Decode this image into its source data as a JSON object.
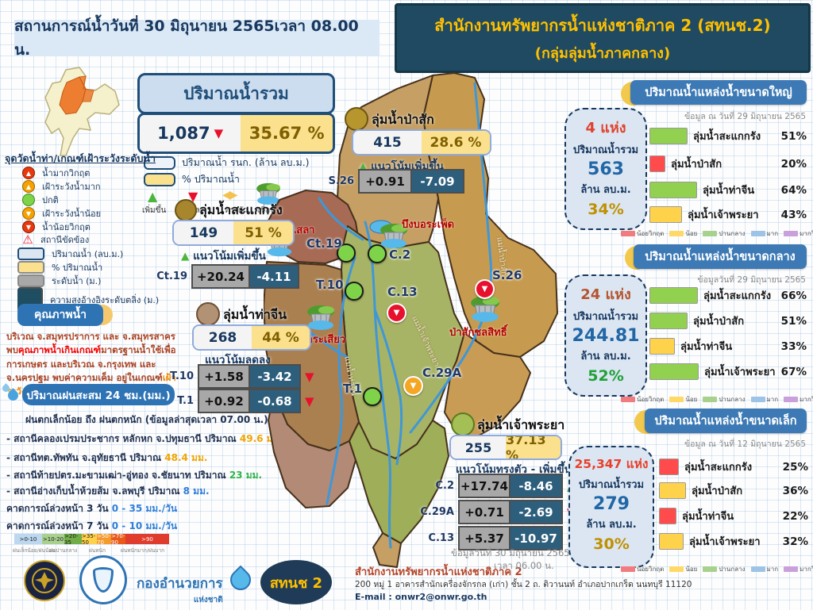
{
  "header": {
    "left_title": "สถานการณ์น้ำวันที่  30 มิถุนายน 2565เวลา 08.00 น.",
    "right_title_line1": "สำนักงานทรัพยากรน้ำแห่งชาติภาค 2 (สทนช.2)",
    "right_title_line2": "(กลุ่มลุ่มน้ำภาคกลาง)"
  },
  "total": {
    "title": "ปริมาณน้ำรวม",
    "value": "1,087",
    "pct": "35.67 %",
    "legend_volume": "ปริมาณน้ำ รนก. (ล้าน ลบ.ม.)",
    "legend_pct": "% ปริมาณน้ำ",
    "trend_up": "เพิ่มขึ้น",
    "trend_down": "ลดลง",
    "trend_stable": "ทรงตัว",
    "dam_label": "เขื่อน"
  },
  "station_legend": {
    "title": "จุดวัดน้ำท่า/เกณฑ์เฝ้าระวังระดับน้ำ",
    "items": [
      {
        "label": "น้ำมากวิกฤต"
      },
      {
        "label": "เฝ้าระวังน้ำมาก"
      },
      {
        "label": "ปกติ"
      },
      {
        "label": "เฝ้าระวังน้ำน้อย"
      },
      {
        "label": "น้ำน้อยวิกฤต"
      },
      {
        "label": "สถานีขัดข้อง"
      },
      {
        "label": "ปริมาณน้ำ (ลบ.ม.)"
      },
      {
        "label": "% ปริมาณน้ำ"
      },
      {
        "label": "ระดับน้ำ (ม.)"
      },
      {
        "label": "ความสูงอ้างอิงระดับตลิ่ง (ม.)"
      }
    ]
  },
  "water_quality": {
    "button": "คุณภาพน้ำ",
    "segments": [
      {
        "t": "บริเวณ จ.สมุทรปราการ และ จ.สมุทรสาคร พบ",
        "c": "#a94425"
      },
      {
        "t": "คุณภาพน้ำเกินเกณฑ์",
        "c": "#f40000"
      },
      {
        "t": "มาตรฐานน้ำใช้เพื่อการเกษตร และบริเวณ จ.กรุงเทพ และ จ.นครปฐม พบค่าความเค็ม อยู่ในเกณฑ์",
        "c": "#a94425"
      },
      {
        "t": "เฝ้าระวังคุณภาพน้ำ",
        "c": "#ef8a00"
      },
      {
        "t": "เพื่อการผลิตน้ำประปา",
        "c": "#a94425"
      }
    ]
  },
  "rain": {
    "button": "ปริมาณฝนสะสม 24 ชม.(มม.)",
    "headline": "ฝนตกเล็กน้อย ถึง ฝนตกหนัก (ข้อมูลล่าสุดเวลา 07.00 น.)",
    "items": [
      [
        {
          "t": "- สถานีคลองเปรมประชากร หลักหก จ.ปทุมธานี ปริมาณ ",
          "c": "#1f3050"
        },
        {
          "t": "49.6 มม.",
          "c": "#f0a500"
        }
      ],
      [
        {
          "t": "- สถานีทต.ทัพทัน จ.อุทัยธานี ปริมาณ ",
          "c": "#1f3050"
        },
        {
          "t": "48.4 มม.",
          "c": "#f0a500"
        }
      ],
      [
        {
          "t": "- สถานีท้ายปตร.มะขามเฒ่า-อู่ทอง จ.ชัยนาท ปริมาณ ",
          "c": "#1f3050"
        },
        {
          "t": "23 มม.",
          "c": "#2db34a"
        }
      ],
      [
        {
          "t": "- สถานีอ่างเก็บน้ำห้วยส้ม จ.ลพบุรี ปริมาณ ",
          "c": "#1f3050"
        },
        {
          "t": "8 มม.",
          "c": "#2f7ed8"
        }
      ]
    ],
    "forecast3": [
      {
        "t": "คาดการณ์ล่วงหน้า 3 วัน  ",
        "c": "#1f3050"
      },
      {
        "t": "0 - 35 มม./วัน",
        "c": "#2f7ed8"
      }
    ],
    "forecast7": [
      {
        "t": "คาดการณ์ล่วงหน้า 7 วัน  ",
        "c": "#1f3050"
      },
      {
        "t": "0 - 10 มม./วัน",
        "c": "#2f7ed8"
      }
    ],
    "scale": {
      "bins": [
        {
          "label": ">0-10",
          "color": "#bdd7ee"
        },
        {
          "label": ">10-20",
          "color": "#a9d08e"
        },
        {
          "label": ">20-35",
          "color": "#70ad47"
        },
        {
          "label": ">35-50",
          "color": "#ffd24c"
        },
        {
          "label": ">50-70",
          "color": "#f59b2d"
        },
        {
          "label": ">70-90",
          "color": "#e8591a"
        },
        {
          "label": ">90",
          "color": "#e03c2d"
        }
      ],
      "labels": [
        "ฝนเล็กน้อย/ฝนน้อย",
        "ฝนปานกลาง",
        "ฝนหนัก",
        "ฝนหนักมาก/ฝนมาก"
      ]
    }
  },
  "basins": {
    "pasak": {
      "name": "ลุ่มน้ำป่าสัก",
      "volume": "415",
      "pct": "28.6 %",
      "trend": "แนวโน้มเพิ่มขึ้น",
      "circle_color": "#b8962e",
      "rows": [
        {
          "station": "S.26",
          "level": "+0.91",
          "bank": "-7.09"
        }
      ]
    },
    "sakaekrang": {
      "name": "ลุ่มน้ำสะแกกรัง",
      "volume": "149",
      "pct": "51 %",
      "trend": "แนวโน้มเพิ่มขึ้น",
      "circle_color": "#a8862e",
      "rows": [
        {
          "station": "Ct.19",
          "level": "+20.24",
          "bank": "-4.11"
        }
      ]
    },
    "thachin": {
      "name": "ลุ่มน้ำท่าจีน",
      "volume": "268",
      "pct": "44 %",
      "trend": "แนวโน้มลดลง",
      "circle_color": "#b29275",
      "rows": [
        {
          "station": "T.10",
          "level": "+1.58",
          "bank": "-3.42"
        },
        {
          "station": "T.1",
          "level": "+0.92",
          "bank": "-0.68"
        }
      ]
    },
    "chaophraya": {
      "name": "ลุ่มน้ำเจ้าพระยา",
      "volume": "255",
      "pct": "37.13 %",
      "trend": "แนวโน้มทรงตัว - เพิ่มขึ้น",
      "circle_color": "#a4bf56",
      "rows": [
        {
          "station": "C.2",
          "level": "+17.74",
          "bank": "-8.46"
        },
        {
          "station": "C.29A",
          "level": "+0.71",
          "bank": "-2.69"
        },
        {
          "station": "C.13",
          "level": "+5.37",
          "bank": "-10.97"
        }
      ],
      "data_date": "ข้อมูลวันที่ 30 มิถุนายน 2565",
      "data_time": "เวลา 06.00 น."
    }
  },
  "map": {
    "stations": [
      {
        "code": "Ct.19",
        "status": "normal"
      },
      {
        "code": "C.2",
        "status": "normal"
      },
      {
        "code": "T.10",
        "status": "normal"
      },
      {
        "code": "T.1",
        "status": "normal"
      },
      {
        "code": "C.13",
        "status": "crit-low"
      },
      {
        "code": "S.26",
        "status": "crit-low"
      },
      {
        "code": "C.29A",
        "status": "watch-low"
      }
    ],
    "dams": [
      {
        "name": "ทับเสลา"
      },
      {
        "name": "บึงบอระเพ็ด"
      },
      {
        "name": "กระเสียว"
      },
      {
        "name": "ป่าสักชลสิทธิ์"
      }
    ],
    "rivers": [
      {
        "name": "แม่น้ำท่าจีน"
      },
      {
        "name": "แม่น้ำเจ้าพระยา"
      },
      {
        "name": "แม่น้ำป่าสัก"
      }
    ]
  },
  "reservoirs": {
    "large": {
      "title": "ปริมาณน้ำแหล่งน้ำขนาดใหญ่",
      "date": "ข้อมูล ณ วันที่ 29 มิถุนายน 2565",
      "count": "4 แห่ง",
      "count_color": "#e0432e",
      "total_label": "ปริมาณน้ำรวม",
      "total": "563",
      "unit": "ล้าน ลบ.ม.",
      "pct": "34%",
      "pct_color": "#bf9000",
      "bars": [
        {
          "label": "ลุ่มน้ำสะแกกรัง",
          "pct": 51,
          "pct_text": "51%",
          "color": "#92d050"
        },
        {
          "label": "ลุ่มน้ำป่าสัก",
          "pct": 20,
          "pct_text": "20%",
          "color": "#ff4b4b"
        },
        {
          "label": "ลุ่มน้ำท่าจีน",
          "pct": 64,
          "pct_text": "64%",
          "color": "#92d050"
        },
        {
          "label": "ลุ่มน้ำเจ้าพระยา",
          "pct": 43,
          "pct_text": "43%",
          "color": "#ffd24c"
        }
      ]
    },
    "medium": {
      "title": "ปริมาณน้ำแหล่งน้ำขนาดกลาง",
      "date": "ข้อมูลวันที่ 29 มิถุนายน 2565",
      "count": "24 แห่ง",
      "count_color": "#b5552d",
      "total_label": "ปริมาณน้ำรวม",
      "total": "244.81",
      "unit": "ล้าน ลบ.ม.",
      "pct": "52%",
      "pct_color": "#21a038",
      "bars": [
        {
          "label": "ลุ่มน้ำสะแกกรัง",
          "pct": 66,
          "pct_text": "66%",
          "color": "#92d050"
        },
        {
          "label": "ลุ่มน้ำป่าสัก",
          "pct": 51,
          "pct_text": "51%",
          "color": "#92d050"
        },
        {
          "label": "ลุ่มน้ำท่าจีน",
          "pct": 33,
          "pct_text": "33%",
          "color": "#ffd24c"
        },
        {
          "label": "ลุ่มน้ำเจ้าพระยา",
          "pct": 67,
          "pct_text": "67%",
          "color": "#92d050"
        }
      ]
    },
    "small": {
      "title": "ปริมาณน้ำแหล่งน้ำขนาดเล็ก",
      "date": "ข้อมูล ณ วันที่ 12 มิถุนายน 2565",
      "count": "25,347 แห่ง",
      "count_color": "#e8402a",
      "total_label": "ปริมาณน้ำรวม",
      "total": "279",
      "unit": "ล้าน ลบ.ม.",
      "pct": "30%",
      "pct_color": "#bf9000",
      "bars": [
        {
          "label": "ลุ่มน้ำสะแกกรัง",
          "pct": 25,
          "pct_text": "25%",
          "color": "#ff4b4b"
        },
        {
          "label": "ลุ่มน้ำป่าสัก",
          "pct": 36,
          "pct_text": "36%",
          "color": "#ffd24c"
        },
        {
          "label": "ลุ่มน้ำท่าจีน",
          "pct": 22,
          "pct_text": "22%",
          "color": "#ff4b4b"
        },
        {
          "label": "ลุ่มน้ำเจ้าพระยา",
          "pct": 32,
          "pct_text": "32%",
          "color": "#ffd24c"
        }
      ]
    }
  },
  "levels_legend": {
    "items": [
      {
        "label": "น้อยวิกฤต",
        "color": "#f07c80"
      },
      {
        "label": "น้อย",
        "color": "#ffd966"
      },
      {
        "label": "ปานกลาง",
        "color": "#a9d18e"
      },
      {
        "label": "มาก",
        "color": "#9dc3e6"
      },
      {
        "label": "มากวิกฤต",
        "color": "#c9a0dc"
      }
    ]
  },
  "footer": {
    "org_logo_text": "สทนช 2",
    "command_center_line1": "กองอำนวยการ",
    "command_center_line2": "แห่งชาติ",
    "title": "สำนักงานทรัพยากรน้ำแห่งชาติภาค 2",
    "address": "200  หมู่ 1 อาคารสำนักเครื่องจักรกล (เก่า) ชั้น 2 ถ. ติวานนท์ อำเภอปากเกร็ด นนทบุรี 11120",
    "email": "E-mail : onwr2@onwr.go.th"
  },
  "chart_data": [
    {
      "type": "bar",
      "title": "ปริมาณน้ำแหล่งน้ำขนาดใหญ่",
      "date": "ข้อมูล ณ วันที่ 29 มิถุนายน 2565",
      "categories": [
        "ลุ่มน้ำสะแกกรัง",
        "ลุ่มน้ำป่าสัก",
        "ลุ่มน้ำท่าจีน",
        "ลุ่มน้ำเจ้าพระยา"
      ],
      "values": [
        51,
        20,
        64,
        43
      ],
      "unit": "%",
      "summary": {
        "count": "4 แห่ง",
        "total_volume": 563,
        "total_unit": "ล้าน ลบ.ม.",
        "total_pct": "34%"
      },
      "legend": [
        "น้อยวิกฤต",
        "น้อย",
        "ปานกลาง",
        "มาก",
        "มากวิกฤต"
      ]
    },
    {
      "type": "bar",
      "title": "ปริมาณน้ำแหล่งน้ำขนาดกลาง",
      "date": "ข้อมูลวันที่ 29 มิถุนายน 2565",
      "categories": [
        "ลุ่มน้ำสะแกกรัง",
        "ลุ่มน้ำป่าสัก",
        "ลุ่มน้ำท่าจีน",
        "ลุ่มน้ำเจ้าพระยา"
      ],
      "values": [
        66,
        51,
        33,
        67
      ],
      "unit": "%",
      "summary": {
        "count": "24 แห่ง",
        "total_volume": 244.81,
        "total_unit": "ล้าน ลบ.ม.",
        "total_pct": "52%"
      },
      "legend": [
        "น้อยวิกฤต",
        "น้อย",
        "ปานกลาง",
        "มาก",
        "มากวิกฤต"
      ]
    },
    {
      "type": "bar",
      "title": "ปริมาณน้ำแหล่งน้ำขนาดเล็ก",
      "date": "ข้อมูล ณ วันที่ 12 มิถุนายน 2565",
      "categories": [
        "ลุ่มน้ำสะแกกรัง",
        "ลุ่มน้ำป่าสัก",
        "ลุ่มน้ำท่าจีน",
        "ลุ่มน้ำเจ้าพระยา"
      ],
      "values": [
        25,
        36,
        22,
        32
      ],
      "unit": "%",
      "summary": {
        "count": "25,347 แห่ง",
        "total_volume": 279,
        "total_unit": "ล้าน ลบ.ม.",
        "total_pct": "30%"
      },
      "legend": [
        "น้อยวิกฤต",
        "น้อย",
        "ปานกลาง",
        "มาก",
        "มากวิกฤต"
      ]
    }
  ]
}
